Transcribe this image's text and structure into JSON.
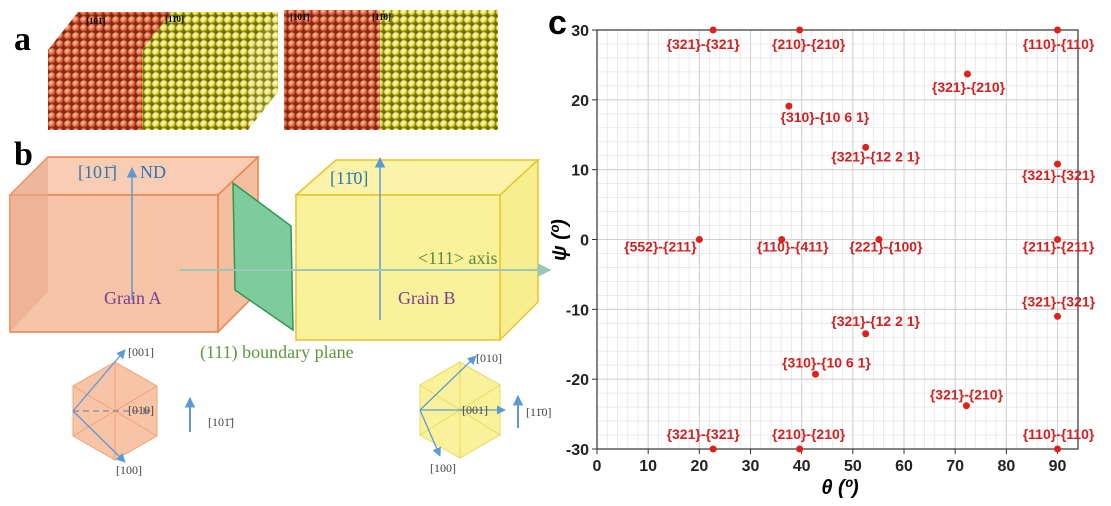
{
  "panel_a": {
    "letter": "a",
    "labels": [
      "[101̄]",
      "[11̄0]",
      "[101̄]",
      "[11̄0]"
    ]
  },
  "panel_b": {
    "letter": "b",
    "axis_a": "[101̄]",
    "nd": "ND",
    "axis_b": "[11̄0]",
    "rotation_axis": "<111> axis",
    "grain_a": "Grain A",
    "grain_b": "Grain B",
    "plane": "(111) boundary plane",
    "hex_a": {
      "top": "[001]",
      "center": "[010]",
      "right": "[101̄]",
      "bottom": "[100]"
    },
    "hex_b": {
      "top": "[010]",
      "center": "[001]",
      "right": "[11̄0]",
      "bottom": "[100]"
    }
  },
  "chart_data": {
    "type": "scatter",
    "panel": "c",
    "xlabel": "θ (º)",
    "ylabel": "ψ (º)",
    "x": [
      22.7,
      39.6,
      90,
      72.4,
      37.5,
      52.5,
      90,
      20,
      36.1,
      55.1,
      90,
      90,
      52.5,
      42.7,
      72.2,
      22.7,
      39.6,
      90
    ],
    "values": [
      30,
      30,
      30,
      23.7,
      19.1,
      13.2,
      10.8,
      0,
      0,
      0,
      0,
      -11,
      -13.5,
      -19.3,
      -23.8,
      -30,
      -30,
      -30
    ],
    "labels": [
      "{321}-{321}",
      "{210}-{210}",
      "{110}-{110}",
      "{321}-{210}",
      "{310}-{10 6 1}",
      "{321}-{12 2 1}",
      "{321}-{321}",
      "{552}-{211}",
      "{110}-{411}",
      "{221}-{100}",
      "{211}-{211}",
      "{321}-{321}",
      "{321}-{12 2 1}",
      "{310}-{10 6 1}",
      "{321}-{210}",
      "{321}-{321}",
      "{210}-{210}",
      "{110}-{110}"
    ],
    "color": "#e0201b",
    "xlim": [
      0,
      94
    ],
    "ylim": [
      -30,
      30
    ],
    "xticks": [
      0,
      10,
      20,
      30,
      40,
      50,
      60,
      70,
      80,
      90
    ],
    "yticks": [
      -30,
      -20,
      -10,
      0,
      10,
      20,
      30
    ],
    "grid": true
  }
}
